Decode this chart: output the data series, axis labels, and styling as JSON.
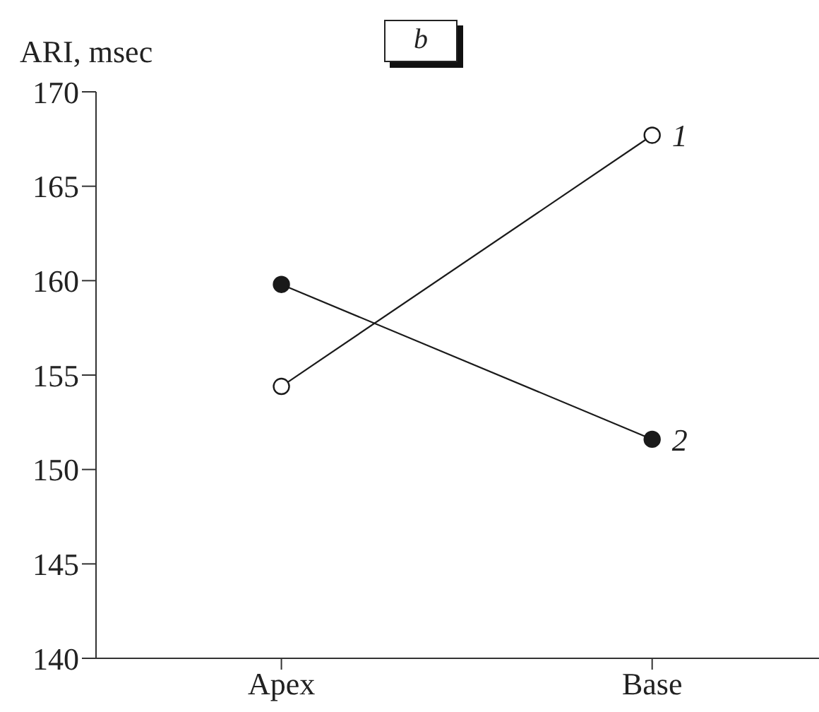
{
  "chart_data": {
    "type": "line",
    "title": "b",
    "ylabel": "ARI, msec",
    "categories": [
      "Apex",
      "Base"
    ],
    "series": [
      {
        "name": "1",
        "color": "#ffffff",
        "values": [
          154.4,
          167.7
        ]
      },
      {
        "name": "2",
        "color": "#1a1a1a",
        "values": [
          159.8,
          151.6
        ]
      }
    ],
    "ylim": [
      140,
      170
    ],
    "yticks": [
      140,
      145,
      150,
      155,
      160,
      165,
      170
    ],
    "grid": false,
    "legend": false,
    "marker": "circle",
    "line_style": "solid"
  }
}
